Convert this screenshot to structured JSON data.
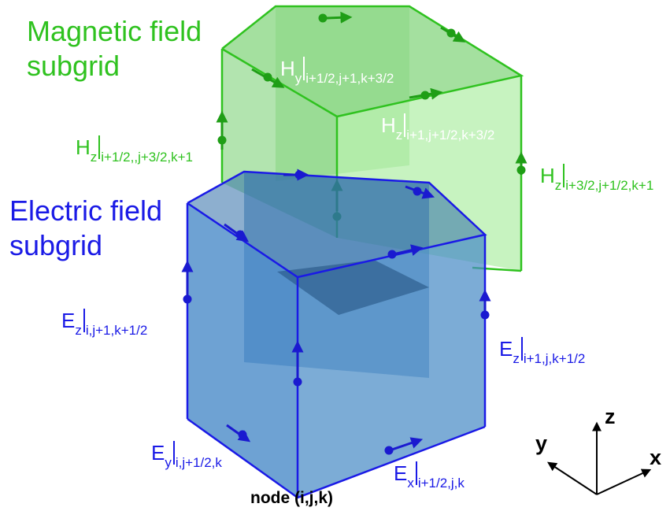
{
  "titles": {
    "magnetic_line1": "Magnetic field",
    "magnetic_line2": "subgrid",
    "electric_line1": "Electric field",
    "electric_line2": "subgrid"
  },
  "labels": {
    "hy_top": {
      "sym": "H",
      "comp": "y",
      "idx": "i+1/2,j+1,k+3/2"
    },
    "hz_inner": {
      "sym": "H",
      "comp": "z",
      "idx": "i+1,j+1/2,k+3/2"
    },
    "hz_left": {
      "sym": "H",
      "comp": "z",
      "idx": "i+1/2,,j+3/2,k+1"
    },
    "hz_right": {
      "sym": "H",
      "comp": "z",
      "idx": "i+3/2,j+1/2,k+1"
    },
    "ez_left": {
      "sym": "E",
      "comp": "z",
      "idx": "i,j+1,k+1/2"
    },
    "ez_right": {
      "sym": "E",
      "comp": "z",
      "idx": "i+1,j,k+1/2"
    },
    "ey_bottom": {
      "sym": "E",
      "comp": "y",
      "idx": "i,j+1/2,k"
    },
    "ex_bottom": {
      "sym": "E",
      "comp": "x",
      "idx": "i+1/2,j,k"
    }
  },
  "node_label": "node (i,j,k)",
  "axes": {
    "z": "z",
    "y": "y",
    "x": "x"
  },
  "colors": {
    "magnetic": "#2fc21f",
    "electric": "#1a1ae6",
    "magnetic_fill": "#7fd87a",
    "electric_fill": "#3f86c2"
  }
}
